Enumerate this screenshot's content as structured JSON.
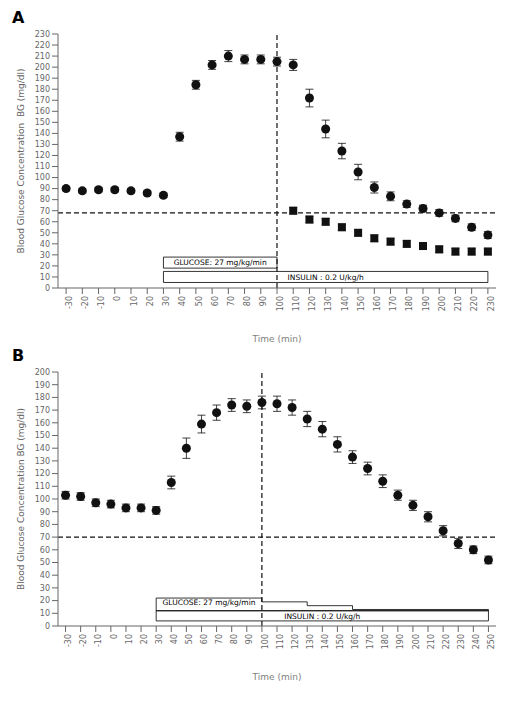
{
  "chart_data": [
    {
      "type": "scatter",
      "title": "A",
      "x_label": "Time (min)",
      "y_label": "Blood Glucose Concentration  BG (mg/dl)",
      "xlim": [
        -35,
        235
      ],
      "ylim": [
        0,
        230
      ],
      "xticks": [
        -30,
        -20,
        -10,
        0,
        10,
        20,
        30,
        40,
        50,
        60,
        70,
        80,
        90,
        100,
        110,
        120,
        130,
        140,
        150,
        160,
        170,
        180,
        190,
        200,
        210,
        220,
        230
      ],
      "yticks": [
        0,
        10,
        20,
        30,
        40,
        50,
        60,
        70,
        80,
        90,
        100,
        110,
        120,
        130,
        140,
        150,
        160,
        170,
        180,
        190,
        200,
        210,
        220,
        230
      ],
      "grid": false,
      "series": [
        {
          "x": [
            -30,
            -20,
            -10,
            0,
            10,
            20,
            30,
            40,
            50,
            60,
            70,
            80,
            90,
            100,
            110,
            120,
            130,
            140,
            150,
            160,
            170,
            180,
            190,
            200,
            210,
            220,
            230
          ],
          "values": [
            90,
            88,
            89,
            89,
            88,
            86,
            84,
            137,
            184,
            202,
            210,
            207,
            207,
            205,
            202,
            172,
            144,
            124,
            105,
            91,
            83,
            76,
            72,
            68,
            63,
            55,
            48
          ],
          "errors": [
            2,
            2,
            2,
            2,
            2,
            2,
            2,
            4,
            4,
            4,
            5,
            4,
            4,
            4,
            5,
            8,
            8,
            7,
            7,
            5,
            4,
            3,
            3,
            3,
            3,
            3,
            3
          ],
          "marker": "circle",
          "color": "#111111"
        },
        {
          "x": [
            110,
            120,
            130,
            140,
            150,
            160,
            170,
            180,
            190,
            200,
            210,
            220,
            230
          ],
          "values": [
            70,
            62,
            60,
            55,
            50,
            45,
            42,
            40,
            38,
            35,
            33,
            33,
            33
          ],
          "errors": [
            3,
            3,
            3,
            3,
            3,
            3,
            3,
            3,
            3,
            3,
            3,
            3,
            3
          ],
          "marker": "square",
          "color": "#111111"
        }
      ],
      "reference_lines": [
        {
          "axis": "y",
          "value": 68,
          "color": "#111111",
          "line_style": "dashed"
        },
        {
          "axis": "x",
          "value": 100,
          "color": "#111111",
          "line_style": "dashed"
        }
      ],
      "annotations": [
        {
          "shape": "box",
          "text": "GLUCOSE: 27 mg/kg/min",
          "x1": 30,
          "x2": 100,
          "y1": 18,
          "y2": 28,
          "color": "#000000"
        },
        {
          "shape": "box",
          "text": "INSULIN : 0.2 U/kg/h",
          "x1": 30,
          "x2": 230,
          "y1": 5,
          "y2": 15,
          "color": "#000000"
        }
      ]
    },
    {
      "type": "scatter",
      "title": "B",
      "x_label": "Time (min)",
      "y_label": "Blood Glucose Concentration BG (mg/dl)",
      "xlim": [
        -35,
        255
      ],
      "ylim": [
        0,
        200
      ],
      "xticks": [
        -30,
        -20,
        -10,
        0,
        10,
        20,
        30,
        40,
        50,
        60,
        70,
        80,
        90,
        100,
        110,
        120,
        130,
        140,
        150,
        160,
        170,
        180,
        190,
        200,
        210,
        220,
        230,
        240,
        250
      ],
      "yticks": [
        0,
        10,
        20,
        30,
        40,
        50,
        60,
        70,
        80,
        90,
        100,
        110,
        120,
        130,
        140,
        150,
        160,
        170,
        180,
        190,
        200
      ],
      "grid": false,
      "series": [
        {
          "x": [
            -30,
            -20,
            -10,
            0,
            10,
            20,
            30,
            40,
            50,
            60,
            70,
            80,
            90,
            100,
            110,
            120,
            130,
            140,
            150,
            160,
            170,
            180,
            190,
            200,
            210,
            220,
            230,
            240,
            250
          ],
          "values": [
            103,
            102,
            97,
            96,
            93,
            93,
            91,
            113,
            140,
            159,
            168,
            174,
            173,
            176,
            175,
            172,
            163,
            155,
            143,
            133,
            124,
            114,
            103,
            95,
            86,
            75,
            65,
            60,
            52
          ],
          "errors": [
            3,
            3,
            3,
            3,
            3,
            3,
            3,
            5,
            8,
            7,
            6,
            5,
            5,
            5,
            6,
            6,
            6,
            6,
            6,
            5,
            5,
            5,
            4,
            4,
            4,
            4,
            4,
            3,
            3
          ],
          "marker": "circle",
          "color": "#111111"
        }
      ],
      "reference_lines": [
        {
          "axis": "y",
          "value": 70,
          "color": "#111111",
          "line_style": "dashed"
        },
        {
          "axis": "x",
          "value": 100,
          "color": "#111111",
          "line_style": "dashed"
        }
      ],
      "annotations": [
        {
          "shape": "steps",
          "text": "GLUCOSE: 27 mg/kg/min",
          "steps": [
            {
              "x1": 30,
              "x2": 100,
              "y": 22
            },
            {
              "x1": 100,
              "x2": 130,
              "y": 19
            },
            {
              "x1": 130,
              "x2": 160,
              "y": 16
            },
            {
              "x1": 160,
              "x2": 250,
              "y": 13
            }
          ],
          "y_bottom": 12,
          "text_box": {
            "x1": 30,
            "x2": 100,
            "y1": 14,
            "y2": 24
          },
          "color": "#000000"
        },
        {
          "shape": "box",
          "text": "INSULIN : 0.2 U/kg/h",
          "x1": 30,
          "x2": 250,
          "y1": 4,
          "y2": 12,
          "color": "#000000"
        }
      ]
    }
  ]
}
